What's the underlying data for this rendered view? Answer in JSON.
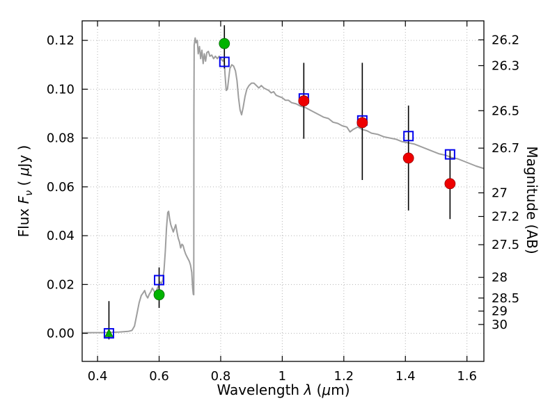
{
  "axes": {
    "xlabel_prefix": "Wavelength ",
    "xlabel_symbol": "λ",
    "xlabel_open": " (",
    "xlabel_mu": "μ",
    "xlabel_end": "m)",
    "ylabel_prefix": "Flux ",
    "ylabel_symbol": "F",
    "ylabel_sub": "ν",
    "ylabel_open": " ( ",
    "ylabel_mu": "μ",
    "ylabel_end": "Jy )",
    "y2label": "Magnitude (AB)"
  },
  "chart_data": {
    "type": "line+scatter",
    "title": "",
    "xlabel": "Wavelength λ (μm)",
    "ylabel": "Flux Fν ( μJy )",
    "y2label": "Magnitude (AB)",
    "xlim": [
      0.35,
      1.655
    ],
    "ylim": [
      -0.0115,
      0.128
    ],
    "grid": true,
    "ab_zeropoint_ujy": 23.9,
    "xticks": {
      "values": [
        0.4,
        0.6,
        0.8,
        1.0,
        1.2,
        1.4,
        1.6
      ],
      "labels": [
        "0.4",
        "0.6",
        "0.8",
        "1",
        "1.2",
        "1.4",
        "1.6"
      ]
    },
    "yticks": {
      "values": [
        0.0,
        0.02,
        0.04,
        0.06,
        0.08,
        0.1,
        0.12
      ],
      "labels": [
        "0.00",
        "0.02",
        "0.04",
        "0.06",
        "0.08",
        "0.10",
        "0.12"
      ]
    },
    "y2ticks": {
      "values": [
        26.2,
        26.3,
        26.5,
        26.7,
        27,
        27.2,
        27.5,
        28,
        28.5,
        29,
        30
      ],
      "labels": [
        "26.2",
        "26.3",
        "26.5",
        "26.7",
        "27",
        "27.2",
        "27.5",
        "28",
        "28.5",
        "29",
        "30"
      ]
    },
    "style": {
      "grid_color": "#b3b3b3",
      "frame_color": "#000000",
      "tick_length": 8,
      "background": "#ffffff"
    },
    "spectrum": {
      "name": "model-spectrum",
      "color": "#9e9e9e",
      "width": 2,
      "points": [
        [
          0.35,
          0.0002
        ],
        [
          0.38,
          0.0003
        ],
        [
          0.41,
          0.0003
        ],
        [
          0.44,
          0.0004
        ],
        [
          0.47,
          0.0005
        ],
        [
          0.5,
          0.0008
        ],
        [
          0.512,
          0.0012
        ],
        [
          0.52,
          0.003
        ],
        [
          0.528,
          0.008
        ],
        [
          0.535,
          0.0125
        ],
        [
          0.542,
          0.0155
        ],
        [
          0.548,
          0.0165
        ],
        [
          0.553,
          0.0175
        ],
        [
          0.558,
          0.0155
        ],
        [
          0.563,
          0.0145
        ],
        [
          0.568,
          0.016
        ],
        [
          0.573,
          0.017
        ],
        [
          0.578,
          0.0185
        ],
        [
          0.583,
          0.0175
        ],
        [
          0.588,
          0.016
        ],
        [
          0.593,
          0.018
        ],
        [
          0.598,
          0.0195
        ],
        [
          0.603,
          0.021
        ],
        [
          0.608,
          0.0205
        ],
        [
          0.612,
          0.022
        ],
        [
          0.616,
          0.026
        ],
        [
          0.62,
          0.0335
        ],
        [
          0.624,
          0.043
        ],
        [
          0.628,
          0.0495
        ],
        [
          0.631,
          0.05
        ],
        [
          0.634,
          0.047
        ],
        [
          0.638,
          0.0445
        ],
        [
          0.642,
          0.043
        ],
        [
          0.646,
          0.0415
        ],
        [
          0.65,
          0.043
        ],
        [
          0.654,
          0.0445
        ],
        [
          0.658,
          0.0415
        ],
        [
          0.662,
          0.039
        ],
        [
          0.666,
          0.0375
        ],
        [
          0.67,
          0.035
        ],
        [
          0.674,
          0.0365
        ],
        [
          0.678,
          0.036
        ],
        [
          0.682,
          0.034
        ],
        [
          0.686,
          0.0325
        ],
        [
          0.69,
          0.0315
        ],
        [
          0.694,
          0.0305
        ],
        [
          0.698,
          0.0295
        ],
        [
          0.702,
          0.028
        ],
        [
          0.706,
          0.025
        ],
        [
          0.709,
          0.0185
        ],
        [
          0.711,
          0.016
        ],
        [
          0.7125,
          0.0158
        ],
        [
          0.713,
          0.09
        ],
        [
          0.714,
          0.118
        ],
        [
          0.717,
          0.121
        ],
        [
          0.72,
          0.119
        ],
        [
          0.724,
          0.12
        ],
        [
          0.727,
          0.1145
        ],
        [
          0.731,
          0.1175
        ],
        [
          0.735,
          0.1125
        ],
        [
          0.739,
          0.116
        ],
        [
          0.743,
          0.1105
        ],
        [
          0.747,
          0.1145
        ],
        [
          0.751,
          0.1115
        ],
        [
          0.755,
          0.115
        ],
        [
          0.76,
          0.1155
        ],
        [
          0.765,
          0.1135
        ],
        [
          0.771,
          0.114
        ],
        [
          0.777,
          0.1125
        ],
        [
          0.783,
          0.1135
        ],
        [
          0.789,
          0.1125
        ],
        [
          0.795,
          0.1135
        ],
        [
          0.801,
          0.1125
        ],
        [
          0.807,
          0.1115
        ],
        [
          0.811,
          0.1125
        ],
        [
          0.814,
          0.106
        ],
        [
          0.818,
          0.0995
        ],
        [
          0.822,
          0.1
        ],
        [
          0.826,
          0.1045
        ],
        [
          0.83,
          0.1085
        ],
        [
          0.836,
          0.11
        ],
        [
          0.842,
          0.1095
        ],
        [
          0.848,
          0.1075
        ],
        [
          0.853,
          0.1035
        ],
        [
          0.858,
          0.0965
        ],
        [
          0.863,
          0.0915
        ],
        [
          0.868,
          0.0895
        ],
        [
          0.873,
          0.0925
        ],
        [
          0.879,
          0.097
        ],
        [
          0.885,
          0.1
        ],
        [
          0.892,
          0.1015
        ],
        [
          0.9,
          0.1025
        ],
        [
          0.908,
          0.1025
        ],
        [
          0.916,
          0.1015
        ],
        [
          0.924,
          0.1005
        ],
        [
          0.932,
          0.1015
        ],
        [
          0.94,
          0.1005
        ],
        [
          0.948,
          0.1
        ],
        [
          0.956,
          0.0995
        ],
        [
          0.964,
          0.0985
        ],
        [
          0.972,
          0.099
        ],
        [
          0.98,
          0.0975
        ],
        [
          0.99,
          0.097
        ],
        [
          1.0,
          0.0965
        ],
        [
          1.01,
          0.0955
        ],
        [
          1.02,
          0.0955
        ],
        [
          1.03,
          0.0945
        ],
        [
          1.045,
          0.094
        ],
        [
          1.06,
          0.093
        ],
        [
          1.075,
          0.0925
        ],
        [
          1.09,
          0.0915
        ],
        [
          1.105,
          0.0905
        ],
        [
          1.12,
          0.0895
        ],
        [
          1.135,
          0.0885
        ],
        [
          1.15,
          0.088
        ],
        [
          1.165,
          0.0865
        ],
        [
          1.18,
          0.086
        ],
        [
          1.195,
          0.085
        ],
        [
          1.21,
          0.0845
        ],
        [
          1.22,
          0.0825
        ],
        [
          1.23,
          0.0835
        ],
        [
          1.245,
          0.0845
        ],
        [
          1.26,
          0.0835
        ],
        [
          1.275,
          0.083
        ],
        [
          1.29,
          0.082
        ],
        [
          1.31,
          0.0815
        ],
        [
          1.33,
          0.0805
        ],
        [
          1.35,
          0.08
        ],
        [
          1.37,
          0.0795
        ],
        [
          1.39,
          0.0785
        ],
        [
          1.41,
          0.078
        ],
        [
          1.43,
          0.0775
        ],
        [
          1.45,
          0.0765
        ],
        [
          1.47,
          0.0755
        ],
        [
          1.49,
          0.0745
        ],
        [
          1.51,
          0.0735
        ],
        [
          1.53,
          0.073
        ],
        [
          1.55,
          0.072
        ],
        [
          1.57,
          0.0715
        ],
        [
          1.59,
          0.0705
        ],
        [
          1.61,
          0.0695
        ],
        [
          1.63,
          0.0685
        ],
        [
          1.655,
          0.0675
        ]
      ]
    },
    "errorbars": {
      "color": "#000000",
      "width": 1.6,
      "bars": [
        {
          "x": 0.437,
          "lo": -0.0025,
          "hi": 0.0132
        },
        {
          "x": 0.6,
          "lo": 0.0104,
          "hi": 0.027
        },
        {
          "x": 0.812,
          "lo": 0.1085,
          "hi": 0.1262
        },
        {
          "x": 1.07,
          "lo": 0.0797,
          "hi": 0.1108
        },
        {
          "x": 1.26,
          "lo": 0.0628,
          "hi": 0.1108
        },
        {
          "x": 1.41,
          "lo": 0.0503,
          "hi": 0.0933
        },
        {
          "x": 1.545,
          "lo": 0.0468,
          "hi": 0.0753
        }
      ]
    },
    "photometry": [
      {
        "name": "model-photometry",
        "marker": "square-open",
        "color": "#0000ee",
        "size": 13,
        "points": [
          [
            0.437,
            0.0
          ],
          [
            0.6,
            0.0218
          ],
          [
            0.812,
            0.1112
          ],
          [
            1.07,
            0.0962
          ],
          [
            1.26,
            0.0872
          ],
          [
            1.41,
            0.0808
          ],
          [
            1.545,
            0.0733
          ]
        ]
      },
      {
        "name": "observed-optical",
        "marker": "circle",
        "color": "#00b300",
        "edge": "#006600",
        "size": 15,
        "points": [
          [
            0.6,
            0.0158
          ],
          [
            0.812,
            0.1187
          ]
        ]
      },
      {
        "name": "observed-limit",
        "marker": "triangle-up",
        "color": "#00b300",
        "edge": "#006600",
        "size": 11,
        "points": [
          [
            0.437,
            0.0002
          ]
        ]
      },
      {
        "name": "observed-infrared",
        "marker": "circle",
        "color": "#ee0000",
        "edge": "#990000",
        "size": 15,
        "points": [
          [
            1.07,
            0.0952
          ],
          [
            1.26,
            0.0863
          ],
          [
            1.41,
            0.0718
          ],
          [
            1.545,
            0.0613
          ]
        ]
      }
    ]
  }
}
